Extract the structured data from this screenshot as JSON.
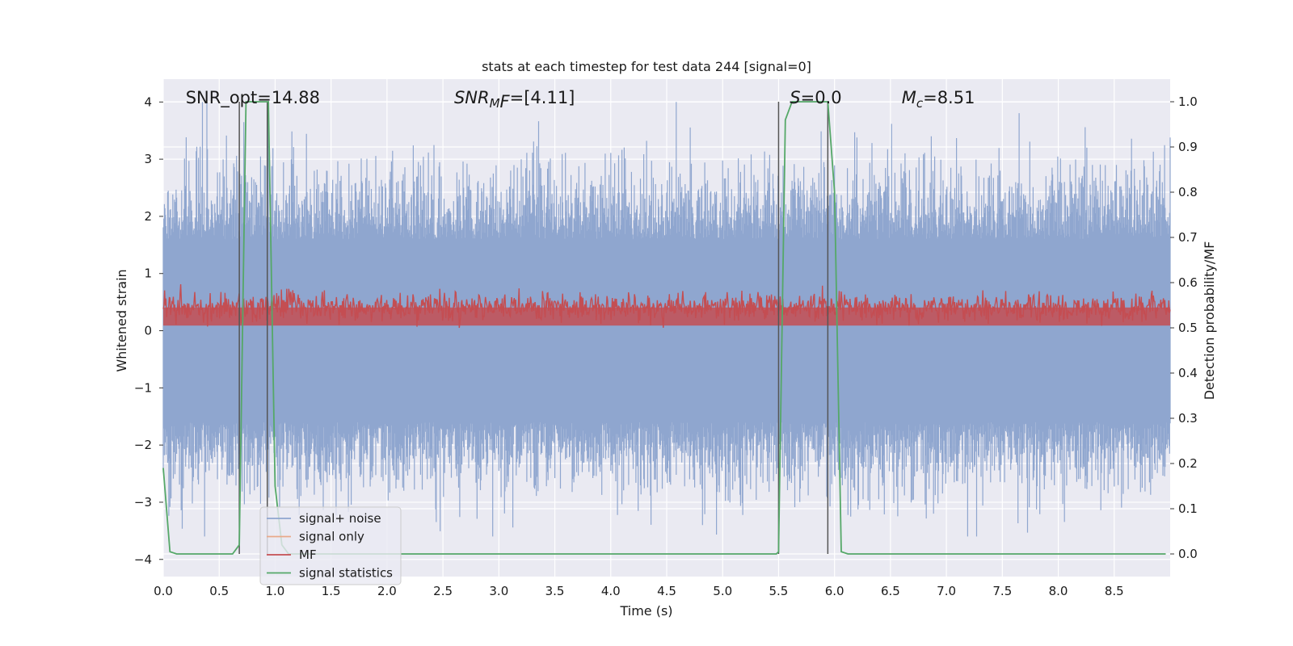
{
  "chart_data": {
    "type": "line",
    "title": "stats at each timestep for test data 244 [signal=0]",
    "xlabel": "Time (s)",
    "ylabel": "Whitened strain",
    "y2label": "Detection probability/MF",
    "xlim": [
      0.0,
      9.0
    ],
    "ylim": [
      -4.3,
      4.4
    ],
    "y2lim": [
      -0.05,
      1.05
    ],
    "grid": true,
    "x_ticks": [
      "0.0",
      "0.5",
      "1.0",
      "1.5",
      "2.0",
      "2.5",
      "3.0",
      "3.5",
      "4.0",
      "4.5",
      "5.0",
      "5.5",
      "6.0",
      "6.5",
      "7.0",
      "7.5",
      "8.0",
      "8.5"
    ],
    "y_ticks": [
      "4",
      "3",
      "2",
      "1",
      "0",
      "−1",
      "−2",
      "−3",
      "−4"
    ],
    "y2_ticks": [
      "1.0",
      "0.9",
      "0.8",
      "0.7",
      "0.6",
      "0.5",
      "0.4",
      "0.3",
      "0.2",
      "0.1",
      "0.0"
    ],
    "annotations": [
      {
        "text": "SNR_opt=14.88",
        "x": 0.2,
        "y": 4.1
      },
      {
        "text": "SNR",
        "sub": "M",
        "after": "F=[4.11]",
        "italic": true,
        "x": 2.6,
        "y": 4.1
      },
      {
        "text": "S=0.0",
        "italic_first": true,
        "x": 5.6,
        "y": 4.1
      },
      {
        "text": "M",
        "sub": "c",
        "after": "=8.51",
        "italic": true,
        "x": 6.6,
        "y": 4.1
      }
    ],
    "legend": {
      "placement": "lower-left",
      "entries": [
        "signal+ noise",
        "signal only",
        "MF",
        "signal statistics"
      ]
    },
    "colors": {
      "signal_noise": "#8fa6cf",
      "signal_only": "#e9a98a",
      "mf": "#c44e52",
      "signal_statistics": "#55a868",
      "vlines": "#555555",
      "plot_bg": "#eaeaf2",
      "grid": "#ffffff"
    },
    "series": [
      {
        "name": "signal+ noise",
        "axis": "left",
        "description_values": {
          "typical_band": [
            -1.6,
            1.6
          ],
          "peak_max": 4.0,
          "peak_min": -3.6
        }
      },
      {
        "name": "signal only",
        "axis": "left",
        "values": []
      },
      {
        "name": "MF",
        "axis": "right",
        "description_values": {
          "typical_band": [
            0.51,
            0.58
          ],
          "peak_max": 0.6
        }
      },
      {
        "name": "signal statistics",
        "axis": "right",
        "x": [
          0.0,
          0.06,
          0.12,
          0.62,
          0.68,
          0.74,
          0.94,
          1.0,
          1.06,
          1.12,
          5.48,
          5.5,
          5.56,
          5.62,
          5.94,
          6.0,
          6.06,
          6.12,
          8.96
        ],
        "y": [
          0.19,
          0.005,
          0.0,
          0.0,
          0.02,
          1.0,
          1.0,
          0.15,
          0.02,
          0.0,
          0.0,
          0.005,
          0.96,
          1.0,
          1.0,
          0.8,
          0.005,
          0.0,
          0.0
        ]
      }
    ],
    "vertical_lines": [
      {
        "x": 0.68,
        "y2_from": 0.0,
        "y2_to": 1.0
      },
      {
        "x": 0.93,
        "y2_from": 0.0,
        "y2_to": 1.0
      },
      {
        "x": 5.5,
        "y2_from": 0.0,
        "y2_to": 1.0
      },
      {
        "x": 5.94,
        "y2_from": 0.0,
        "y2_to": 1.0
      }
    ]
  }
}
